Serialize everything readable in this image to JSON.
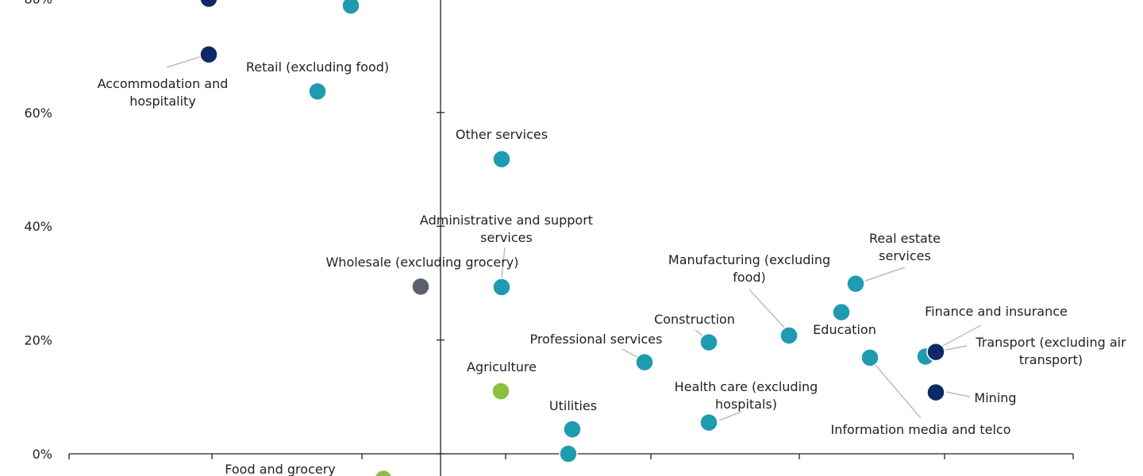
{
  "chart_data": {
    "type": "scatter",
    "title": "",
    "xlabel": "",
    "ylabel": "",
    "ylim": [
      -4,
      80
    ],
    "y_ticks": [
      {
        "value": 0,
        "label": "0%"
      },
      {
        "value": 20,
        "label": "20%"
      },
      {
        "value": 40,
        "label": "40%"
      },
      {
        "value": 60,
        "label": "60%"
      },
      {
        "value": 80,
        "label": "80%"
      }
    ],
    "colors": {
      "teal": "#1f9bb0",
      "navy": "#0d2a66",
      "green": "#8cbe3f",
      "gray": "#5a5f6e"
    },
    "points": [
      {
        "label": "Accommodation and\nhospitality",
        "x": 263,
        "y": 70.2,
        "color": "navy"
      },
      {
        "label": "",
        "x": 263,
        "y": 80,
        "color": "navy"
      },
      {
        "label": "",
        "x": 442,
        "y": 78.8,
        "color": "teal"
      },
      {
        "label": "Retail (excluding food)",
        "x": 400,
        "y": 63.7,
        "color": "teal"
      },
      {
        "label": "Other services",
        "x": 632,
        "y": 51.8,
        "color": "teal"
      },
      {
        "label": "Administrative and support\nservices",
        "x": 632,
        "y": 29.3,
        "color": "teal"
      },
      {
        "label": "Wholesale (excluding grocery)",
        "x": 530,
        "y": 29.4,
        "color": "gray"
      },
      {
        "label": "Real estate\nservices",
        "x": 1078,
        "y": 29.9,
        "color": "teal"
      },
      {
        "label": "",
        "x": 1060,
        "y": 24.9,
        "color": "teal"
      },
      {
        "label": "Manufacturing (excluding\nfood)",
        "x": 994,
        "y": 20.8,
        "color": "teal"
      },
      {
        "label": "Construction",
        "x": 893,
        "y": 19.6,
        "color": "teal"
      },
      {
        "label": "Education",
        "x": 1096,
        "y": 16.9,
        "color": "teal"
      },
      {
        "label": "Professional services",
        "x": 812,
        "y": 16.1,
        "color": "teal"
      },
      {
        "label": "",
        "x": 1166,
        "y": 17.1,
        "color": "teal"
      },
      {
        "label": "Finance and insurance",
        "x": 1179,
        "y": 17.9,
        "color": "navy"
      },
      {
        "label": "Transport (excluding air\ntransport)",
        "x": 1179,
        "y": 17.9,
        "color": "navy"
      },
      {
        "label": "Mining",
        "x": 1179,
        "y": 10.8,
        "color": "navy"
      },
      {
        "label": "Agriculture",
        "x": 631,
        "y": 11.0,
        "color": "green"
      },
      {
        "label": "Information media and telco",
        "x": 1096,
        "y": 16.9,
        "color": "teal"
      },
      {
        "label": "Health care (excluding\nhospitals)",
        "x": 893,
        "y": 5.5,
        "color": "teal"
      },
      {
        "label": "Utilities",
        "x": 721,
        "y": 4.3,
        "color": "teal"
      },
      {
        "label": "",
        "x": 716,
        "y": 0.0,
        "color": "teal"
      },
      {
        "label": "Food and grocery",
        "x": 483,
        "y": -4.4,
        "color": "green"
      }
    ]
  }
}
